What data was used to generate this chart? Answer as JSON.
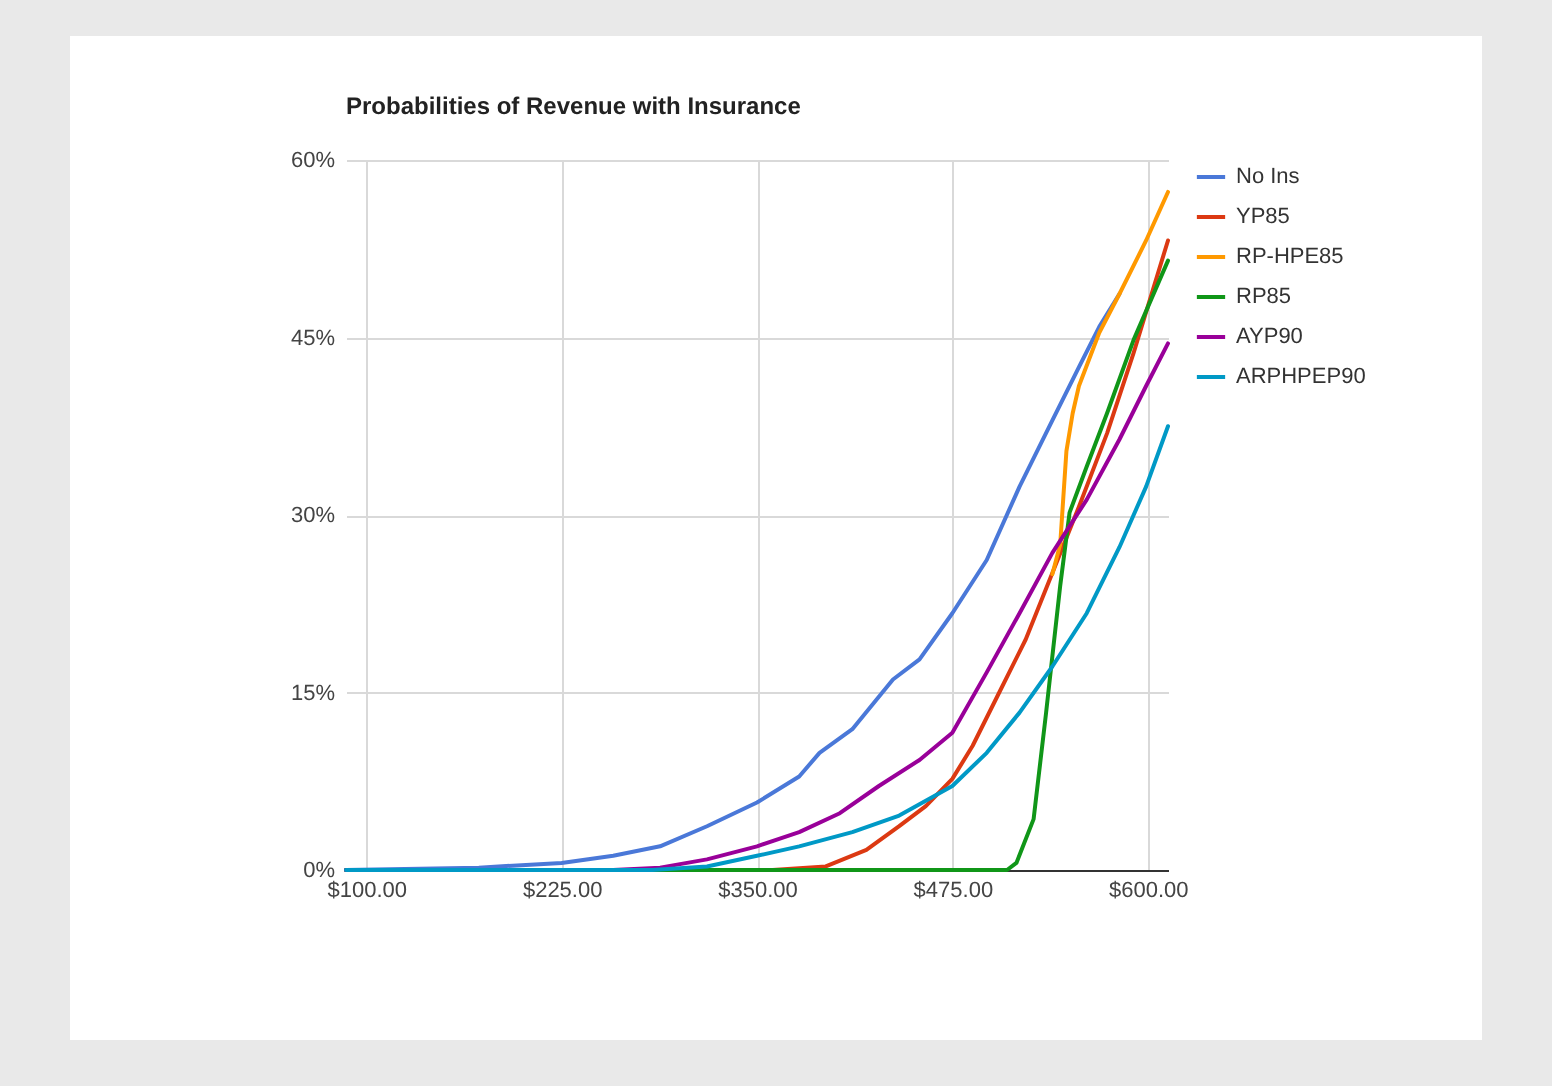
{
  "chart_data": {
    "type": "line",
    "title": "Probabilities of Revenue with Insurance",
    "series": [
      {
        "name": "No Ins",
        "color": "#4a78d8",
        "x": [
          87,
          172,
          225,
          258,
          288,
          318,
          350,
          377,
          390,
          411,
          437,
          454,
          475,
          497,
          518,
          539,
          556,
          569,
          582
        ],
        "values": [
          0,
          0.2,
          0.6,
          1.2,
          2,
          3.7,
          5.7,
          7.9,
          9.9,
          11.9,
          16.1,
          17.8,
          21.7,
          26.2,
          32.4,
          38,
          42.5,
          45.9,
          48.7
        ]
      },
      {
        "name": "YP85",
        "color": "#dc3912",
        "x": [
          87,
          360,
          394,
          420,
          441,
          458,
          475,
          488,
          505,
          522,
          539,
          556,
          574,
          591,
          613
        ],
        "values": [
          0,
          0,
          0.3,
          1.7,
          3.7,
          5.4,
          7.7,
          10.5,
          15,
          19.5,
          25.1,
          30.7,
          36.9,
          43.7,
          53.2
        ]
      },
      {
        "name": "RP-HPE85",
        "color": "#ff9900",
        "x": [
          539,
          544,
          548,
          552,
          556,
          569,
          582,
          599,
          613
        ],
        "values": [
          25,
          27.5,
          35.4,
          38.6,
          40.9,
          45.4,
          48.7,
          53.2,
          57.3
        ]
      },
      {
        "name": "RP85",
        "color": "#109618",
        "x": [
          87,
          510,
          516,
          527,
          535,
          544,
          550,
          561,
          574,
          591,
          613
        ],
        "values": [
          0,
          0,
          0.6,
          4.3,
          13.3,
          24,
          30.2,
          34.1,
          38.6,
          44.8,
          51.5
        ]
      },
      {
        "name": "AYP90",
        "color": "#990099",
        "x": [
          87,
          258,
          288,
          318,
          350,
          377,
          403,
          428,
          454,
          475,
          497,
          518,
          539,
          561,
          582,
          599,
          613
        ],
        "values": [
          0,
          0,
          0.2,
          0.9,
          2,
          3.2,
          4.8,
          7.1,
          9.3,
          11.6,
          16.7,
          21.7,
          26.8,
          31.3,
          36.4,
          40.9,
          44.5
        ]
      },
      {
        "name": "ARPHPEP90",
        "color": "#0099c6",
        "x": [
          87,
          283,
          318,
          350,
          377,
          411,
          441,
          475,
          497,
          518,
          539,
          561,
          582,
          599,
          613
        ],
        "values": [
          0,
          0,
          0.3,
          1.2,
          2,
          3.2,
          4.6,
          7.1,
          9.9,
          13.3,
          17.2,
          21.7,
          27.3,
          32.4,
          37.5
        ]
      }
    ],
    "xlim": [
      87,
      613
    ],
    "xticks": [
      {
        "value": 100,
        "label": "$100.00"
      },
      {
        "value": 225,
        "label": "$225.00"
      },
      {
        "value": 350,
        "label": "$350.00"
      },
      {
        "value": 475,
        "label": "$475.00"
      },
      {
        "value": 600,
        "label": "$600.00"
      }
    ],
    "ylim": [
      0,
      60
    ],
    "yticks": [
      {
        "value": 0,
        "label": "0%"
      },
      {
        "value": 15,
        "label": "15%"
      },
      {
        "value": 30,
        "label": "30%"
      },
      {
        "value": 45,
        "label": "45%"
      },
      {
        "value": 60,
        "label": "60%"
      }
    ],
    "grid": true,
    "legend": "right",
    "marker": "none",
    "line_style": "solid"
  }
}
